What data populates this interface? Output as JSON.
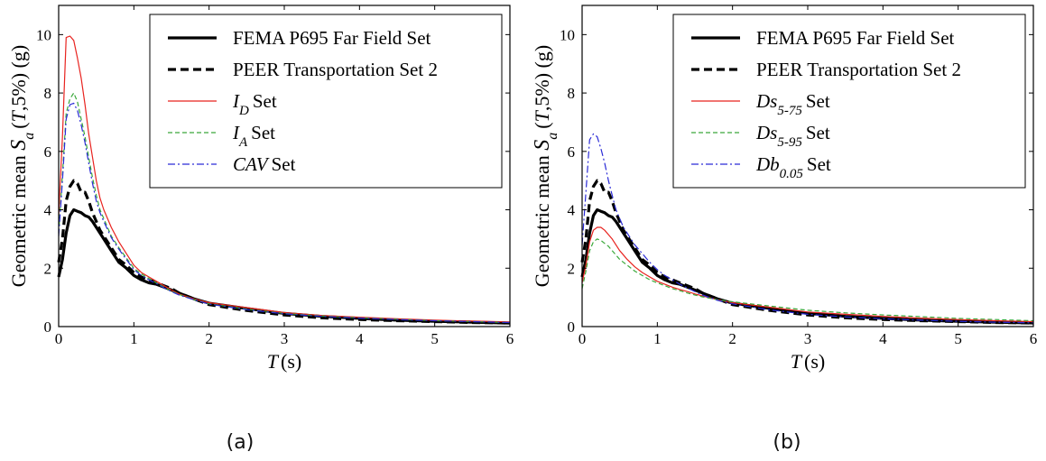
{
  "chart_data": [
    {
      "panel": "a",
      "caption": "(a)",
      "type": "line",
      "xlabel": "T (s)",
      "ylabel": "Geometric mean Sa (T,5%) (g)",
      "xlim": [
        0,
        6
      ],
      "ylim": [
        0,
        11
      ],
      "xticks": [
        0,
        1,
        2,
        3,
        4,
        5,
        6
      ],
      "yticks": [
        0,
        2,
        4,
        6,
        8,
        10
      ],
      "legend_position": "top-right",
      "series": [
        {
          "name": "FEMA P695 Far Field Set",
          "color": "#000000",
          "style": "solid-thick",
          "x": [
            0,
            0.05,
            0.1,
            0.15,
            0.2,
            0.25,
            0.3,
            0.35,
            0.4,
            0.45,
            0.5,
            0.55,
            0.6,
            0.7,
            0.8,
            0.9,
            1.0,
            1.1,
            1.2,
            1.3,
            1.4,
            1.5,
            1.6,
            1.8,
            2.0,
            2.5,
            3.0,
            3.5,
            4.0,
            4.5,
            5.0,
            5.5,
            6.0
          ],
          "y": [
            1.7,
            2.3,
            3.2,
            3.8,
            4.0,
            3.95,
            3.9,
            3.8,
            3.75,
            3.6,
            3.4,
            3.2,
            3.0,
            2.6,
            2.2,
            2.0,
            1.75,
            1.6,
            1.5,
            1.45,
            1.35,
            1.25,
            1.15,
            0.95,
            0.8,
            0.62,
            0.45,
            0.35,
            0.28,
            0.22,
            0.18,
            0.15,
            0.12
          ]
        },
        {
          "name": "PEER Transportation Set 2",
          "color": "#000000",
          "style": "dashed-thick",
          "x": [
            0,
            0.05,
            0.1,
            0.15,
            0.2,
            0.25,
            0.3,
            0.35,
            0.4,
            0.45,
            0.5,
            0.55,
            0.6,
            0.7,
            0.8,
            0.9,
            1.0,
            1.1,
            1.2,
            1.3,
            1.4,
            1.5,
            1.6,
            1.8,
            2.0,
            2.5,
            3.0,
            3.5,
            4.0,
            4.5,
            5.0,
            5.5,
            6.0
          ],
          "y": [
            2.2,
            3.0,
            4.3,
            4.8,
            5.0,
            4.9,
            4.6,
            4.6,
            4.3,
            3.9,
            3.6,
            3.3,
            3.1,
            2.7,
            2.3,
            2.1,
            1.85,
            1.7,
            1.6,
            1.5,
            1.4,
            1.3,
            1.15,
            0.95,
            0.75,
            0.55,
            0.4,
            0.3,
            0.24,
            0.2,
            0.17,
            0.14,
            0.12
          ]
        },
        {
          "name": "I_D Set",
          "color": "#e8231f",
          "style": "solid-thin",
          "x": [
            0,
            0.05,
            0.1,
            0.15,
            0.2,
            0.25,
            0.3,
            0.35,
            0.4,
            0.45,
            0.5,
            0.55,
            0.6,
            0.7,
            0.8,
            0.9,
            1.0,
            1.1,
            1.2,
            1.3,
            1.4,
            1.5,
            1.6,
            1.8,
            2.0,
            2.5,
            3.0,
            3.5,
            4.0,
            4.5,
            5.0,
            5.5,
            6.0
          ],
          "y": [
            3.8,
            6.5,
            9.9,
            9.95,
            9.8,
            9.2,
            8.5,
            7.6,
            6.6,
            5.8,
            5.0,
            4.4,
            4.0,
            3.4,
            2.9,
            2.5,
            2.1,
            1.85,
            1.7,
            1.55,
            1.4,
            1.25,
            1.12,
            0.95,
            0.82,
            0.65,
            0.48,
            0.38,
            0.32,
            0.27,
            0.22,
            0.19,
            0.16
          ]
        },
        {
          "name": "I_A Set",
          "color": "#3aa83a",
          "style": "dashed-thin",
          "x": [
            0,
            0.05,
            0.1,
            0.15,
            0.2,
            0.25,
            0.3,
            0.35,
            0.4,
            0.45,
            0.5,
            0.55,
            0.6,
            0.7,
            0.8,
            0.9,
            1.0,
            1.1,
            1.2,
            1.3,
            1.4,
            1.5,
            1.6,
            1.8,
            2.0,
            2.5,
            3.0,
            3.5,
            4.0,
            4.5,
            5.0,
            5.5,
            6.0
          ],
          "y": [
            3.2,
            5.2,
            7.3,
            7.8,
            8.0,
            7.7,
            7.1,
            6.5,
            5.8,
            5.1,
            4.5,
            4.0,
            3.7,
            3.1,
            2.7,
            2.35,
            2.0,
            1.8,
            1.65,
            1.5,
            1.35,
            1.22,
            1.1,
            0.93,
            0.78,
            0.6,
            0.45,
            0.36,
            0.3,
            0.25,
            0.2,
            0.17,
            0.14
          ]
        },
        {
          "name": "CAV Set",
          "color": "#2a2ad6",
          "style": "dashdot-thin",
          "x": [
            0,
            0.05,
            0.1,
            0.15,
            0.2,
            0.25,
            0.3,
            0.35,
            0.4,
            0.45,
            0.5,
            0.55,
            0.6,
            0.7,
            0.8,
            0.9,
            1.0,
            1.1,
            1.2,
            1.3,
            1.4,
            1.5,
            1.6,
            1.8,
            2.0,
            2.5,
            3.0,
            3.5,
            4.0,
            4.5,
            5.0,
            5.5,
            6.0
          ],
          "y": [
            3.1,
            5.0,
            7.1,
            7.6,
            7.65,
            7.4,
            6.9,
            6.3,
            5.6,
            4.9,
            4.3,
            3.9,
            3.6,
            3.05,
            2.65,
            2.3,
            1.95,
            1.75,
            1.6,
            1.47,
            1.33,
            1.2,
            1.08,
            0.92,
            0.77,
            0.58,
            0.44,
            0.35,
            0.29,
            0.24,
            0.2,
            0.17,
            0.14
          ]
        }
      ]
    },
    {
      "panel": "b",
      "caption": "(b)",
      "type": "line",
      "xlabel": "T (s)",
      "ylabel": "Geometric mean Sa (T,5%) (g)",
      "xlim": [
        0,
        6
      ],
      "ylim": [
        0,
        11
      ],
      "xticks": [
        0,
        1,
        2,
        3,
        4,
        5,
        6
      ],
      "yticks": [
        0,
        2,
        4,
        6,
        8,
        10
      ],
      "legend_position": "top-right",
      "series": [
        {
          "name": "FEMA P695 Far Field Set",
          "color": "#000000",
          "style": "solid-thick",
          "x": [
            0,
            0.05,
            0.1,
            0.15,
            0.2,
            0.25,
            0.3,
            0.35,
            0.4,
            0.45,
            0.5,
            0.55,
            0.6,
            0.7,
            0.8,
            0.9,
            1.0,
            1.1,
            1.2,
            1.3,
            1.4,
            1.5,
            1.6,
            1.8,
            2.0,
            2.5,
            3.0,
            3.5,
            4.0,
            4.5,
            5.0,
            5.5,
            6.0
          ],
          "y": [
            1.7,
            2.3,
            3.2,
            3.8,
            4.0,
            3.95,
            3.9,
            3.8,
            3.75,
            3.6,
            3.4,
            3.2,
            3.0,
            2.6,
            2.2,
            2.0,
            1.75,
            1.6,
            1.5,
            1.45,
            1.35,
            1.25,
            1.15,
            0.95,
            0.8,
            0.62,
            0.45,
            0.35,
            0.28,
            0.22,
            0.18,
            0.15,
            0.12
          ]
        },
        {
          "name": "PEER Transportation Set 2",
          "color": "#000000",
          "style": "dashed-thick",
          "x": [
            0,
            0.05,
            0.1,
            0.15,
            0.2,
            0.25,
            0.3,
            0.35,
            0.4,
            0.45,
            0.5,
            0.55,
            0.6,
            0.7,
            0.8,
            0.9,
            1.0,
            1.1,
            1.2,
            1.3,
            1.4,
            1.5,
            1.6,
            1.8,
            2.0,
            2.5,
            3.0,
            3.5,
            4.0,
            4.5,
            5.0,
            5.5,
            6.0
          ],
          "y": [
            2.2,
            3.0,
            4.3,
            4.8,
            5.0,
            4.9,
            4.6,
            4.6,
            4.3,
            3.9,
            3.6,
            3.3,
            3.1,
            2.7,
            2.3,
            2.1,
            1.85,
            1.7,
            1.6,
            1.5,
            1.4,
            1.3,
            1.15,
            0.95,
            0.75,
            0.55,
            0.4,
            0.3,
            0.24,
            0.2,
            0.17,
            0.14,
            0.12
          ]
        },
        {
          "name": "Ds_5-75 Set",
          "color": "#e8231f",
          "style": "solid-thin",
          "x": [
            0,
            0.05,
            0.1,
            0.15,
            0.2,
            0.25,
            0.3,
            0.35,
            0.4,
            0.45,
            0.5,
            0.55,
            0.6,
            0.7,
            0.8,
            0.9,
            1.0,
            1.1,
            1.2,
            1.3,
            1.4,
            1.5,
            1.6,
            1.8,
            2.0,
            2.5,
            3.0,
            3.5,
            4.0,
            4.5,
            5.0,
            5.5,
            6.0
          ],
          "y": [
            1.5,
            2.1,
            2.9,
            3.3,
            3.4,
            3.4,
            3.3,
            3.15,
            3.0,
            2.8,
            2.6,
            2.45,
            2.3,
            2.05,
            1.85,
            1.7,
            1.55,
            1.45,
            1.35,
            1.27,
            1.2,
            1.12,
            1.05,
            0.92,
            0.82,
            0.66,
            0.5,
            0.42,
            0.35,
            0.29,
            0.24,
            0.2,
            0.17
          ]
        },
        {
          "name": "Ds_5-95 Set",
          "color": "#3aa83a",
          "style": "dashed-thin",
          "x": [
            0,
            0.05,
            0.1,
            0.15,
            0.2,
            0.25,
            0.3,
            0.35,
            0.4,
            0.45,
            0.5,
            0.55,
            0.6,
            0.7,
            0.8,
            0.9,
            1.0,
            1.1,
            1.2,
            1.3,
            1.4,
            1.5,
            1.6,
            1.8,
            2.0,
            2.5,
            3.0,
            3.5,
            4.0,
            4.5,
            5.0,
            5.5,
            6.0
          ],
          "y": [
            1.3,
            1.9,
            2.6,
            2.9,
            3.0,
            2.95,
            2.85,
            2.75,
            2.6,
            2.45,
            2.3,
            2.2,
            2.1,
            1.9,
            1.75,
            1.6,
            1.5,
            1.4,
            1.3,
            1.23,
            1.15,
            1.08,
            1.02,
            0.92,
            0.85,
            0.7,
            0.56,
            0.47,
            0.4,
            0.34,
            0.28,
            0.24,
            0.2
          ]
        },
        {
          "name": "Db_0.05 Set",
          "color": "#2a2ad6",
          "style": "dashdot-thin",
          "x": [
            0,
            0.05,
            0.1,
            0.15,
            0.2,
            0.25,
            0.3,
            0.35,
            0.4,
            0.45,
            0.5,
            0.55,
            0.6,
            0.7,
            0.8,
            0.9,
            1.0,
            1.1,
            1.2,
            1.3,
            1.4,
            1.5,
            1.6,
            1.8,
            2.0,
            2.5,
            3.0,
            3.5,
            4.0,
            4.5,
            5.0,
            5.5,
            6.0
          ],
          "y": [
            2.8,
            4.6,
            6.4,
            6.6,
            6.5,
            6.1,
            5.6,
            5.0,
            4.5,
            4.0,
            3.7,
            3.4,
            3.2,
            2.8,
            2.5,
            2.2,
            1.95,
            1.75,
            1.6,
            1.45,
            1.32,
            1.2,
            1.08,
            0.9,
            0.78,
            0.57,
            0.42,
            0.33,
            0.27,
            0.22,
            0.18,
            0.15,
            0.13
          ]
        }
      ]
    }
  ]
}
